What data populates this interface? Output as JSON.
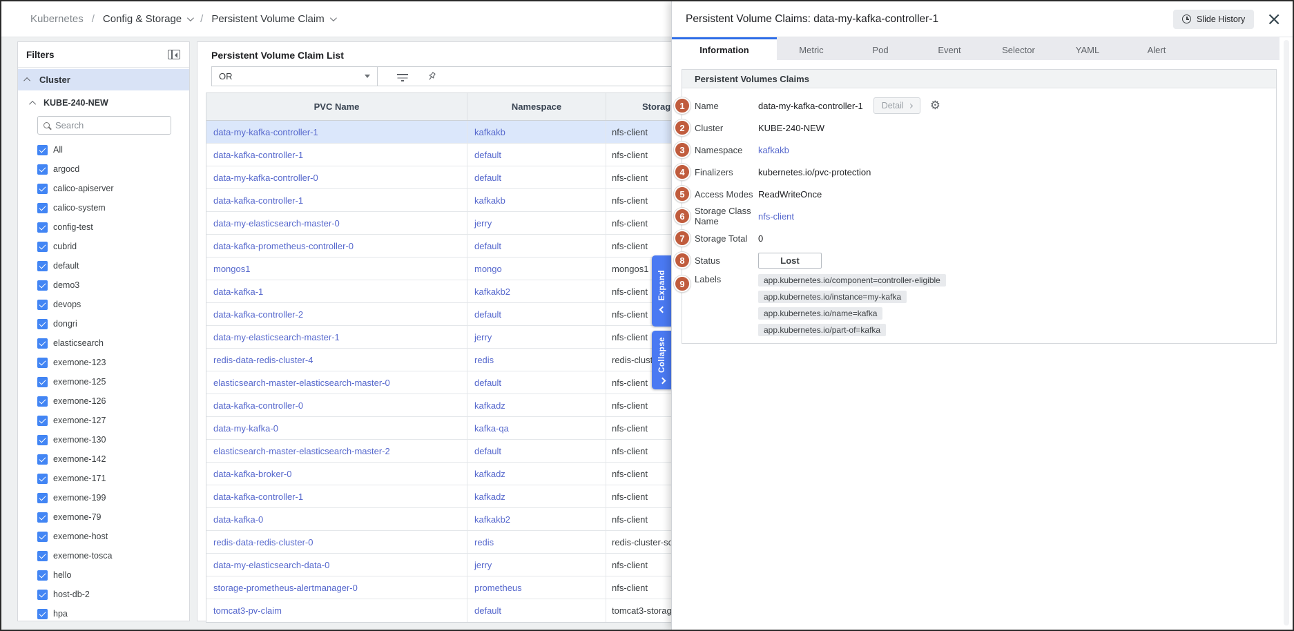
{
  "breadcrumb": {
    "root": "Kubernetes",
    "separator": "/",
    "items": [
      "Config & Storage",
      "Persistent Volume Claim"
    ]
  },
  "filters": {
    "title": "Filters",
    "section_label": "Cluster",
    "cluster_name": "KUBE-240-NEW",
    "search_placeholder": "Search",
    "namespaces": [
      "All",
      "argocd",
      "calico-apiserver",
      "calico-system",
      "config-test",
      "cubrid",
      "default",
      "demo3",
      "devops",
      "dongri",
      "elasticsearch",
      "exemone-123",
      "exemone-125",
      "exemone-126",
      "exemone-127",
      "exemone-130",
      "exemone-142",
      "exemone-171",
      "exemone-199",
      "exemone-79",
      "exemone-host",
      "exemone-tosca",
      "hello",
      "host-db-2",
      "hpa",
      ""
    ]
  },
  "list": {
    "title": "Persistent Volume Claim List",
    "operator_value": "OR",
    "columns": [
      "PVC Name",
      "Namespace",
      "Storag"
    ],
    "selected_index": 0,
    "rows": [
      {
        "pvc": "data-my-kafka-controller-1",
        "ns": "kafkakb",
        "sc": "nfs-client"
      },
      {
        "pvc": "data-kafka-controller-1",
        "ns": "default",
        "sc": "nfs-client"
      },
      {
        "pvc": "data-my-kafka-controller-0",
        "ns": "default",
        "sc": "nfs-client"
      },
      {
        "pvc": "data-kafka-controller-1",
        "ns": "kafkakb",
        "sc": "nfs-client"
      },
      {
        "pvc": "data-my-elasticsearch-master-0",
        "ns": "jerry",
        "sc": "nfs-client"
      },
      {
        "pvc": "data-kafka-prometheus-controller-0",
        "ns": "default",
        "sc": "nfs-client"
      },
      {
        "pvc": "mongos1",
        "ns": "mongo",
        "sc": "mongos1"
      },
      {
        "pvc": "data-kafka-1",
        "ns": "kafkakb2",
        "sc": "nfs-client"
      },
      {
        "pvc": "data-kafka-controller-2",
        "ns": "default",
        "sc": "nfs-client"
      },
      {
        "pvc": "data-my-elasticsearch-master-1",
        "ns": "jerry",
        "sc": "nfs-client"
      },
      {
        "pvc": "redis-data-redis-cluster-4",
        "ns": "redis",
        "sc": "redis-clust"
      },
      {
        "pvc": "elasticsearch-master-elasticsearch-master-0",
        "ns": "default",
        "sc": "nfs-client"
      },
      {
        "pvc": "data-kafka-controller-0",
        "ns": "kafkadz",
        "sc": "nfs-client"
      },
      {
        "pvc": "data-my-kafka-0",
        "ns": "kafka-qa",
        "sc": "nfs-client"
      },
      {
        "pvc": "elasticsearch-master-elasticsearch-master-2",
        "ns": "default",
        "sc": "nfs-client"
      },
      {
        "pvc": "data-kafka-broker-0",
        "ns": "kafkadz",
        "sc": "nfs-client"
      },
      {
        "pvc": "data-kafka-controller-1",
        "ns": "kafkadz",
        "sc": "nfs-client"
      },
      {
        "pvc": "data-kafka-0",
        "ns": "kafkakb2",
        "sc": "nfs-client"
      },
      {
        "pvc": "redis-data-redis-cluster-0",
        "ns": "redis",
        "sc": "redis-cluster-sc"
      },
      {
        "pvc": "data-my-elasticsearch-data-0",
        "ns": "jerry",
        "sc": "nfs-client"
      },
      {
        "pvc": "storage-prometheus-alertmanager-0",
        "ns": "prometheus",
        "sc": "nfs-client"
      },
      {
        "pvc": "tomcat3-pv-claim",
        "ns": "default",
        "sc": "tomcat3-storag"
      }
    ]
  },
  "side_tabs": {
    "expand": "Expand",
    "collapse": "Collapse"
  },
  "panel": {
    "title": "Persistent Volume Claims: data-my-kafka-controller-1",
    "slide_history_label": "Slide History",
    "tabs": [
      "Information",
      "Metric",
      "Pod",
      "Event",
      "Selector",
      "YAML",
      "Alert"
    ],
    "active_tab": "Information",
    "section_title": "Persistent Volumes Claims",
    "fields": [
      {
        "num": "1",
        "label": "Name",
        "value": "data-my-kafka-controller-1",
        "type": "name",
        "action_label": "Detail"
      },
      {
        "num": "2",
        "label": "Cluster",
        "value": "KUBE-240-NEW",
        "type": "text"
      },
      {
        "num": "3",
        "label": "Namespace",
        "value": "kafkakb",
        "type": "link"
      },
      {
        "num": "4",
        "label": "Finalizers",
        "value": "kubernetes.io/pvc-protection",
        "type": "text"
      },
      {
        "num": "5",
        "label": "Access Modes",
        "value": "ReadWriteOnce",
        "type": "text"
      },
      {
        "num": "6",
        "label": "Storage Class Name",
        "value": "nfs-client",
        "type": "link"
      },
      {
        "num": "7",
        "label": "Storage Total",
        "value": "0",
        "type": "text"
      },
      {
        "num": "8",
        "label": "Status",
        "value": "Lost",
        "type": "status"
      },
      {
        "num": "9",
        "label": "Labels",
        "type": "chips",
        "chips": [
          "app.kubernetes.io/component=controller-eligible",
          "app.kubernetes.io/instance=my-kafka",
          "app.kubernetes.io/name=kafka",
          "app.kubernetes.io/part-of=kafka"
        ]
      }
    ]
  },
  "colors": {
    "link_blue": "#5668cd",
    "selected_row_bg": "#dbe7fb",
    "checkbox_blue": "#4285f4",
    "section_blue_bg": "#d9e3f6",
    "active_tab_blue": "#2d6de8",
    "vertical_tab_blue": "#4a79f2",
    "number_circle": "#c05c3d",
    "chip_bg": "#e8eaed"
  }
}
